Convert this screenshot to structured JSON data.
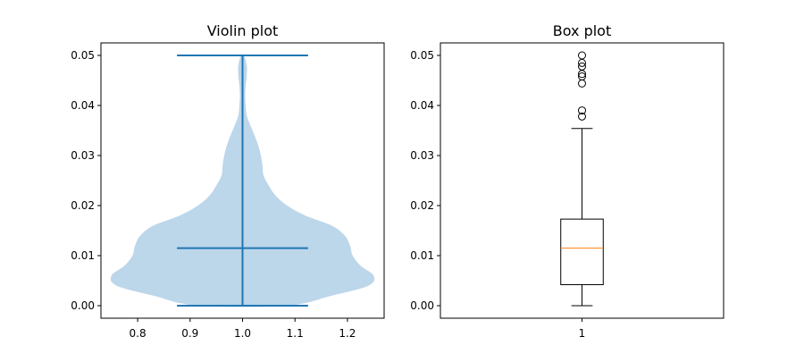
{
  "chart_data": [
    {
      "type": "violin",
      "title": "Violin plot",
      "xlabel": "",
      "ylabel": "",
      "xlim": [
        0.73,
        1.27
      ],
      "ylim": [
        -0.0025,
        0.0525
      ],
      "xticks": [
        0.8,
        0.9,
        1.0,
        1.1,
        1.2
      ],
      "xtick_labels": [
        "0.8",
        "0.9",
        "1.0",
        "1.1",
        "1.2"
      ],
      "yticks": [
        0.0,
        0.01,
        0.02,
        0.03,
        0.04,
        0.05
      ],
      "ytick_labels": [
        "0.00",
        "0.01",
        "0.02",
        "0.03",
        "0.04",
        "0.05"
      ],
      "grid": false,
      "position": 1.0,
      "min": 0.0,
      "max": 0.05,
      "median": 0.0115,
      "cap_halfwidth": 0.125,
      "density": {
        "y": [
          0.0,
          0.002,
          0.004,
          0.006,
          0.008,
          0.01,
          0.012,
          0.014,
          0.016,
          0.018,
          0.02,
          0.022,
          0.024,
          0.026,
          0.028,
          0.03,
          0.032,
          0.034,
          0.036,
          0.038,
          0.04,
          0.042,
          0.044,
          0.046,
          0.048,
          0.05
        ],
        "halfwidth": [
          0.085,
          0.17,
          0.24,
          0.25,
          0.225,
          0.21,
          0.205,
          0.195,
          0.17,
          0.12,
          0.085,
          0.063,
          0.05,
          0.04,
          0.038,
          0.035,
          0.03,
          0.023,
          0.015,
          0.008,
          0.006,
          0.005,
          0.006,
          0.008,
          0.008,
          0.003
        ]
      },
      "colors": {
        "body": "#bcd6ea",
        "lines": "#1f77b4"
      }
    },
    {
      "type": "box",
      "title": "Box plot",
      "xlabel": "",
      "ylabel": "",
      "xlim": [
        0.5,
        1.5
      ],
      "ylim": [
        -0.0025,
        0.0525
      ],
      "xticks": [
        1
      ],
      "xtick_labels": [
        "1"
      ],
      "yticks": [
        0.0,
        0.01,
        0.02,
        0.03,
        0.04,
        0.05
      ],
      "ytick_labels": [
        "0.00",
        "0.01",
        "0.02",
        "0.03",
        "0.04",
        "0.05"
      ],
      "grid": false,
      "position": 1,
      "whisker_low": 0.0,
      "q1": 0.0042,
      "median": 0.0115,
      "q3": 0.0173,
      "whisker_high": 0.0354,
      "outliers": [
        0.0378,
        0.039,
        0.0444,
        0.0458,
        0.0463,
        0.0478,
        0.0485,
        0.05
      ],
      "colors": {
        "box": "#000000",
        "median": "#ff7f0e"
      }
    }
  ]
}
